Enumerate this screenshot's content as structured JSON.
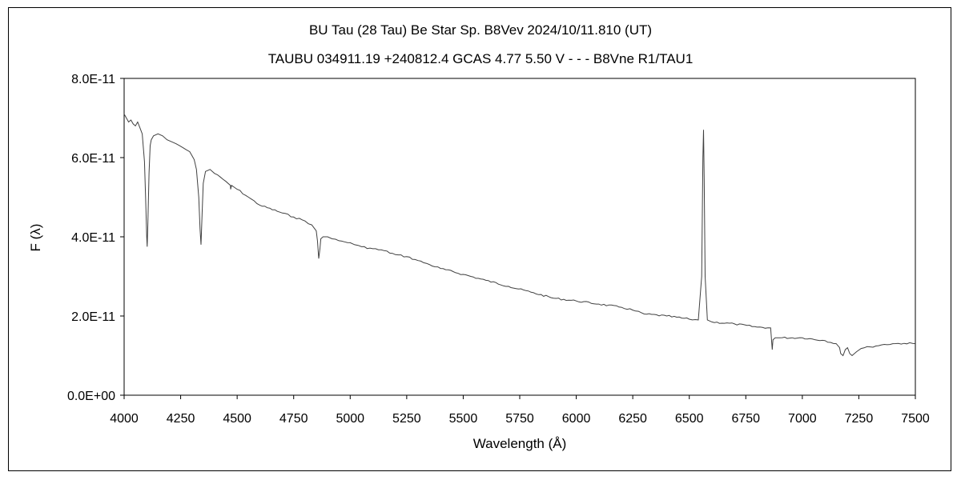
{
  "chart_data": {
    "type": "line",
    "title": "BU Tau (28 Tau)    Be Star    Sp. B8Vev    2024/10/11.810 (UT)",
    "subtitle": "TAUBU 034911.19 +240812.4 GCAS 4.77 5.50 V - - - B8Vne R1/TAU1",
    "xlabel": "Wavelength (Å)",
    "ylabel": "F (λ)",
    "xlim": [
      4000,
      7500
    ],
    "ylim": [
      0,
      8e-11
    ],
    "xticks": [
      4000,
      4250,
      4500,
      4750,
      5000,
      5250,
      5500,
      5750,
      6000,
      6250,
      6500,
      6750,
      7000,
      7250,
      7500
    ],
    "xtick_labels": [
      "4000",
      "4250",
      "4500",
      "4750",
      "5000",
      "5250",
      "5500",
      "5750",
      "6000",
      "6250",
      "6500",
      "6750",
      "7000",
      "7250",
      "7500"
    ],
    "yticks": [
      0,
      2e-11,
      4e-11,
      6e-11,
      8e-11
    ],
    "ytick_labels": [
      "0.0E+00",
      "2.0E-11",
      "4.0E-11",
      "6.0E-11",
      "8.0E-11"
    ],
    "grid": false,
    "legend": "none",
    "line_color": "#404040",
    "series": [
      {
        "x": [
          4000,
          4010,
          4020,
          4030,
          4040,
          4050,
          4060,
          4070,
          4080,
          4090,
          4095,
          4100,
          4102,
          4105,
          4110,
          4115,
          4120,
          4130,
          4150,
          4170,
          4190,
          4210,
          4230,
          4260,
          4290,
          4300,
          4310,
          4320,
          4330,
          4336,
          4340,
          4345,
          4350,
          4360,
          4380,
          4400,
          4450,
          4470,
          4471,
          4475,
          4500,
          4550,
          4600,
          4700,
          4750,
          4800,
          4830,
          4850,
          4855,
          4861,
          4866,
          4870,
          4880,
          4900,
          4920,
          4950,
          5000,
          5020,
          5050,
          5100,
          5150,
          5200,
          5250,
          5300,
          5350,
          5400,
          5500,
          5600,
          5700,
          5800,
          5900,
          6000,
          6100,
          6200,
          6250,
          6300,
          6400,
          6500,
          6540,
          6555,
          6560,
          6563,
          6566,
          6570,
          6580,
          6600,
          6700,
          6800,
          6860,
          6867,
          6870,
          6880,
          6900,
          7000,
          7100,
          7150,
          7165,
          7170,
          7180,
          7190,
          7200,
          7210,
          7220,
          7240,
          7260,
          7300,
          7350,
          7400,
          7450,
          7500
        ],
        "y": [
          7.1e-11,
          7e-11,
          6.9e-11,
          6.95e-11,
          6.85e-11,
          6.8e-11,
          6.9e-11,
          6.75e-11,
          6.6e-11,
          5.9e-11,
          5e-11,
          4e-11,
          3.75e-11,
          4.3e-11,
          5.6e-11,
          6.3e-11,
          6.45e-11,
          6.55e-11,
          6.6e-11,
          6.55e-11,
          6.45e-11,
          6.4e-11,
          6.35e-11,
          6.25e-11,
          6.15e-11,
          6.05e-11,
          5.95e-11,
          5.7e-11,
          5e-11,
          4.2e-11,
          3.8e-11,
          4.6e-11,
          5.35e-11,
          5.65e-11,
          5.7e-11,
          5.6e-11,
          5.4e-11,
          5.3e-11,
          5.2e-11,
          5.3e-11,
          5.2e-11,
          5e-11,
          4.8e-11,
          4.6e-11,
          4.5e-11,
          4.4e-11,
          4.3e-11,
          4.15e-11,
          3.9e-11,
          3.45e-11,
          3.7e-11,
          3.95e-11,
          4e-11,
          4e-11,
          3.95e-11,
          3.9e-11,
          3.85e-11,
          3.8e-11,
          3.75e-11,
          3.7e-11,
          3.65e-11,
          3.55e-11,
          3.5e-11,
          3.4e-11,
          3.3e-11,
          3.2e-11,
          3.05e-11,
          2.9e-11,
          2.75e-11,
          2.6e-11,
          2.45e-11,
          2.38e-11,
          2.3e-11,
          2.22e-11,
          2.15e-11,
          2.05e-11,
          2e-11,
          1.92e-11,
          1.9e-11,
          3e-11,
          6e-11,
          6.7e-11,
          5.5e-11,
          3e-11,
          1.9e-11,
          1.85e-11,
          1.8e-11,
          1.72e-11,
          1.7e-11,
          1.15e-11,
          1.4e-11,
          1.45e-11,
          1.45e-11,
          1.45e-11,
          1.38e-11,
          1.3e-11,
          1.2e-11,
          1.05e-11,
          1e-11,
          1.15e-11,
          1.2e-11,
          1.05e-11,
          1e-11,
          1.1e-11,
          1.18e-11,
          1.22e-11,
          1.27e-11,
          1.3e-11,
          1.31e-11,
          1.3e-11
        ]
      }
    ]
  }
}
